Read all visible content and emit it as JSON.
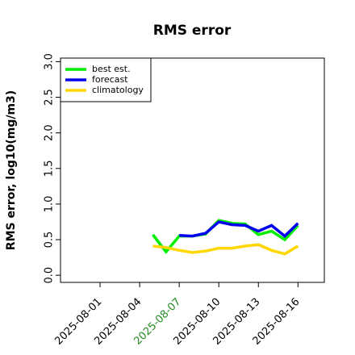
{
  "chart_data": {
    "type": "line",
    "title": "RMS error",
    "ylabel": "RMS error, log10(mg/m3)",
    "x": [
      "2025-08-05",
      "2025-08-06",
      "2025-08-07",
      "2025-08-08",
      "2025-08-09",
      "2025-08-10",
      "2025-08-11",
      "2025-08-12",
      "2025-08-13",
      "2025-08-14",
      "2025-08-15",
      "2025-08-16"
    ],
    "series": [
      {
        "name": "best est.",
        "color": "#00ee00",
        "values": [
          0.57,
          0.33,
          0.55,
          0.55,
          0.58,
          0.77,
          0.73,
          0.72,
          0.57,
          0.62,
          0.5,
          0.7
        ]
      },
      {
        "name": "forecast",
        "color": "#0000ee",
        "values": [
          null,
          null,
          0.56,
          0.55,
          0.59,
          0.75,
          0.71,
          0.7,
          0.62,
          0.7,
          0.55,
          0.73
        ]
      },
      {
        "name": "climatology",
        "color": "#ffd700",
        "values": [
          0.41,
          0.39,
          0.35,
          0.32,
          0.34,
          0.38,
          0.38,
          0.41,
          0.43,
          0.35,
          0.3,
          0.41
        ]
      }
    ],
    "xlim": [
      "2025-07-29",
      "2025-08-18"
    ],
    "xticks": [
      "2025-08-01",
      "2025-08-04",
      "2025-08-07",
      "2025-08-10",
      "2025-08-13",
      "2025-08-16"
    ],
    "xtick_colors": [
      "#000000",
      "#000000",
      "#228b22",
      "#000000",
      "#000000",
      "#000000"
    ],
    "ylim": [
      -0.1,
      3.05
    ],
    "yticks": [
      {
        "value": 0,
        "label": "0.0"
      },
      {
        "value": 0.5,
        "label": "0.5"
      },
      {
        "value": 1,
        "label": "1.0"
      },
      {
        "value": 1.5,
        "label": "1.5"
      },
      {
        "value": 2,
        "label": "2.0"
      },
      {
        "value": 2.5,
        "label": "2.5"
      },
      {
        "value": 3,
        "label": "3.0"
      }
    ],
    "legend": "top-left"
  }
}
